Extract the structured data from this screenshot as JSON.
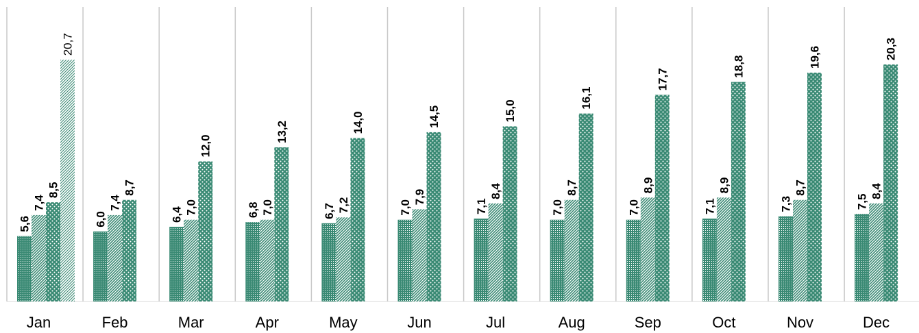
{
  "chart_data": {
    "type": "bar",
    "categories": [
      "Jan",
      "Feb",
      "Mar",
      "Apr",
      "May",
      "Jun",
      "Jul",
      "Aug",
      "Sep",
      "Oct",
      "Nov",
      "Dec"
    ],
    "series": [
      {
        "values": [
          5.6,
          6.0,
          6.4,
          6.8,
          6.7,
          7.0,
          7.1,
          7.0,
          7.0,
          7.1,
          7.3,
          7.5
        ]
      },
      {
        "values": [
          7.4,
          7.4,
          7.0,
          7.0,
          7.2,
          7.9,
          8.4,
          8.7,
          8.9,
          8.9,
          8.7,
          8.4
        ]
      },
      {
        "values": [
          8.5,
          8.7,
          12.0,
          13.2,
          14.0,
          14.5,
          15.0,
          16.1,
          17.7,
          18.8,
          19.6,
          20.3
        ]
      },
      {
        "values": [
          20.7,
          null,
          null,
          null,
          null,
          null,
          null,
          null,
          null,
          null,
          null,
          null
        ]
      }
    ],
    "data_labels": [
      [
        "5,6",
        "6,0",
        "6,4",
        "6,8",
        "6,7",
        "7,0",
        "7,1",
        "7,0",
        "7,0",
        "7,1",
        "7,3",
        "7,5"
      ],
      [
        "7,4",
        "7,4",
        "7,0",
        "7,0",
        "7,2",
        "7,9",
        "8,4",
        "8,7",
        "8,9",
        "8,9",
        "8,7",
        "8,4"
      ],
      [
        "8,5",
        "8,7",
        "12,0",
        "13,2",
        "14,0",
        "14,5",
        "15,0",
        "16,1",
        "17,7",
        "18,8",
        "19,6",
        "20,3"
      ],
      [
        "20,7",
        "",
        "",
        "",
        "",
        "",
        "",
        "",
        "",
        "",
        "",
        ""
      ]
    ],
    "ylim": [
      0,
      24
    ],
    "grid": false,
    "legend": "none",
    "colors": {
      "bar": "#3a8a74",
      "pattern_bg": "#ffffff",
      "divider": "#c8c8c8",
      "text": "#000000"
    }
  }
}
